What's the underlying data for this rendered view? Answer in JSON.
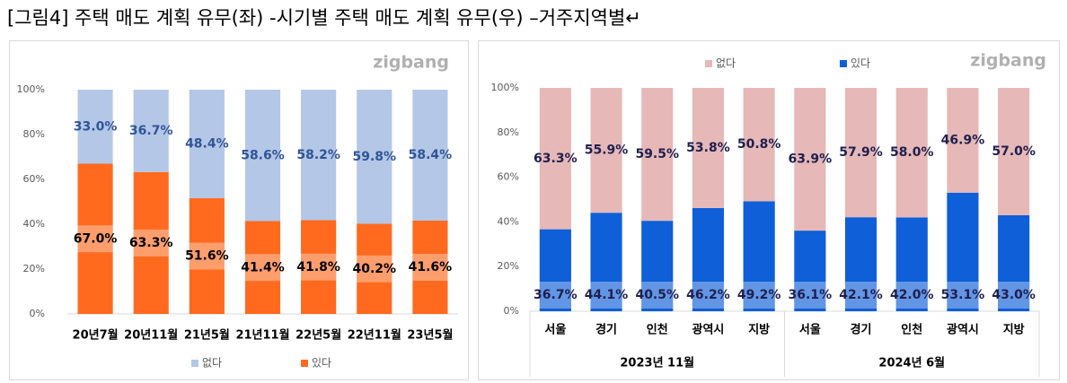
{
  "title": "[그림4] 주택 매도 계획 유무(좌) -시기별     주택 매도 계획 유무(우) –거주지역별↵",
  "chart_data": [
    {
      "type": "bar",
      "stacked": true,
      "watermark": "zigbang",
      "legend": "bottom",
      "grid": false,
      "categories": [
        "20년7월",
        "20년11월",
        "21년5월",
        "21년11월",
        "22년5월",
        "22년11월",
        "23년5월"
      ],
      "series": [
        {
          "name": "있다",
          "color": "#ff6a1f",
          "label_color": "#000000",
          "values": [
            67.0,
            63.3,
            51.6,
            41.4,
            41.8,
            40.2,
            41.6
          ],
          "value_labels": [
            "67.0%",
            "63.3%",
            "51.6%",
            "41.4%",
            "41.8%",
            "40.2%",
            "41.6%"
          ]
        },
        {
          "name": "없다",
          "color": "#b4c7e7",
          "label_color": "#2f5597",
          "values": [
            33.0,
            36.7,
            48.4,
            58.6,
            58.2,
            59.8,
            58.4
          ],
          "value_labels": [
            "33.0%",
            "36.7%",
            "48.4%",
            "58.6%",
            "58.2%",
            "59.8%",
            "58.4%"
          ]
        }
      ],
      "ylim": [
        0,
        100
      ],
      "yticks": [
        {
          "value": 0,
          "label": "0%"
        },
        {
          "value": 20,
          "label": "20%"
        },
        {
          "value": 40,
          "label": "40%"
        },
        {
          "value": 60,
          "label": "60%"
        },
        {
          "value": 80,
          "label": "80%"
        },
        {
          "value": 100,
          "label": "100%"
        }
      ]
    },
    {
      "type": "bar",
      "stacked": true,
      "watermark": "zigbang",
      "legend": "top",
      "grid": false,
      "categories": [
        "서울",
        "경기",
        "인천",
        "광역시",
        "지방",
        "서울",
        "경기",
        "인천",
        "광역시",
        "지방"
      ],
      "groups": [
        "2023년 11월",
        "2024년 6월"
      ],
      "series": [
        {
          "name": "있다",
          "color": "#0e5fd8",
          "label_color": "#1f1f4f",
          "values": [
            36.7,
            44.1,
            40.5,
            46.2,
            49.2,
            36.1,
            42.1,
            42.0,
            53.1,
            43.0
          ],
          "value_labels": [
            "36.7%",
            "44.1%",
            "40.5%",
            "46.2%",
            "49.2%",
            "36.1%",
            "42.1%",
            "42.0%",
            "53.1%",
            "43.0%"
          ]
        },
        {
          "name": "없다",
          "color": "#e6b8b7",
          "label_color": "#1f1f4f",
          "values": [
            63.3,
            55.9,
            59.5,
            53.8,
            50.8,
            63.9,
            57.9,
            58.0,
            46.9,
            57.0
          ],
          "value_labels": [
            "63.3%",
            "55.9%",
            "59.5%",
            "53.8%",
            "50.8%",
            "63.9%",
            "57.9%",
            "58.0%",
            "46.9%",
            "57.0%"
          ]
        }
      ],
      "ylim": [
        0,
        100
      ],
      "yticks": [
        {
          "value": 0,
          "label": "0%"
        },
        {
          "value": 20,
          "label": "20%"
        },
        {
          "value": 40,
          "label": "40%"
        },
        {
          "value": 60,
          "label": "60%"
        },
        {
          "value": 80,
          "label": "80%"
        },
        {
          "value": 100,
          "label": "100%"
        }
      ]
    }
  ]
}
